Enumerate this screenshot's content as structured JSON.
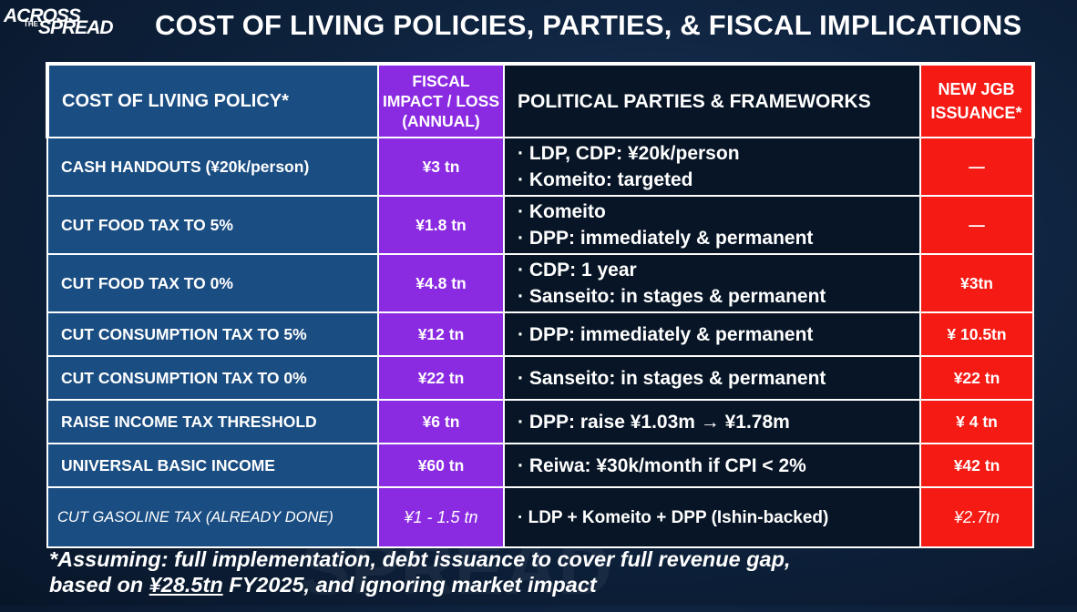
{
  "brand": {
    "line1": "ACROSS",
    "line2": "THE",
    "line3": "SPREAD"
  },
  "title": "COST OF LIVING POLICIES, PARTIES, & FISCAL IMPLICATIONS",
  "watermark": "SPREAD",
  "headers": {
    "policy": "COST OF LIVING POLICY*",
    "fiscal_line1": "FISCAL",
    "fiscal_line2": "IMPACT / LOSS",
    "fiscal_line3": "(ANNUAL)",
    "parties": "POLITICAL PARTIES & FRAMEWORKS",
    "jgb_line1": "NEW JGB",
    "jgb_line2": "ISSUANCE*"
  },
  "rows": [
    {
      "policy": "CASH HANDOUTS (¥20k/person)",
      "impact": "¥3 tn",
      "parties": [
        "· LDP, CDP: ¥20k/person",
        "· Komeito: targeted"
      ],
      "jgb": "—"
    },
    {
      "policy": "CUT FOOD TAX TO 5%",
      "impact": "¥1.8 tn",
      "parties": [
        "· Komeito",
        "· DPP: immediately & permanent"
      ],
      "jgb": "—"
    },
    {
      "policy": "CUT FOOD TAX TO 0%",
      "impact": "¥4.8 tn",
      "parties": [
        "· CDP: 1 year",
        "· Sanseito: in stages & permanent"
      ],
      "jgb": "¥3tn"
    },
    {
      "policy": "CUT CONSUMPTION TAX TO 5%",
      "impact": "¥12 tn",
      "parties": [
        "· DPP: immediately & permanent"
      ],
      "jgb": "¥ 10.5tn"
    },
    {
      "policy": "CUT CONSUMPTION TAX TO 0%",
      "impact": "¥22 tn",
      "parties": [
        "· Sanseito: in stages & permanent"
      ],
      "jgb": "¥22 tn"
    },
    {
      "policy": "RAISE INCOME TAX THRESHOLD",
      "impact": "¥6 tn",
      "parties": [
        "· DPP: raise ¥1.03m → ¥1.78m"
      ],
      "jgb": "¥ 4 tn"
    },
    {
      "policy": "UNIVERSAL BASIC INCOME",
      "impact": "¥60 tn",
      "parties": [
        "· Reiwa: ¥30k/month if CPI < 2%"
      ],
      "jgb": "¥42 tn"
    },
    {
      "policy": "CUT GASOLINE TAX (ALREADY DONE)",
      "impact": "¥1 - 1.5 tn",
      "parties": [
        "· LDP + Komeito + DPP (Ishin-backed)"
      ],
      "jgb": "¥2.7tn"
    }
  ],
  "footnote": {
    "part1": "*Assuming: full implementation, debt issuance to cover full revenue gap,",
    "part2": "based on ",
    "underlined": "¥28.5tn",
    "part3": " FY2025, and ignoring market impact"
  },
  "colors": {
    "policy": "#1a4d82",
    "impact": "#8a2be2",
    "parties": "#071526",
    "jgb": "#f51a14"
  }
}
